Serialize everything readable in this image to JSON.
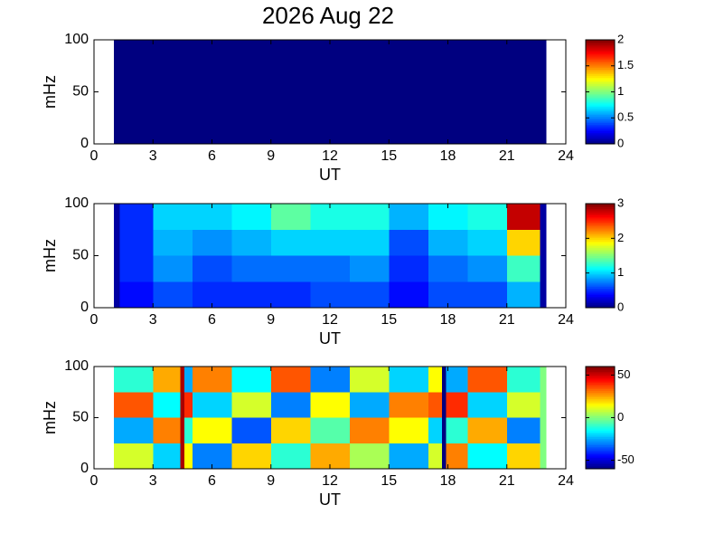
{
  "title": "2026 Aug 22",
  "chart_data": [
    {
      "type": "heatmap",
      "colormap": "jet",
      "xlabel": "UT",
      "ylabel": "mHz",
      "xlim": [
        0,
        24
      ],
      "xticks": [
        0,
        3,
        6,
        9,
        12,
        15,
        18,
        21,
        24
      ],
      "ylim": [
        0,
        100
      ],
      "yticks": [
        0,
        50,
        100
      ],
      "clim": [
        0,
        2
      ],
      "cticks": [
        0,
        0.5,
        1,
        1.5,
        2
      ],
      "x_edges": [
        1,
        23
      ],
      "y_edges": [
        0,
        100
      ],
      "values": [
        [
          0
        ]
      ]
    },
    {
      "type": "heatmap",
      "colormap": "jet",
      "xlabel": "UT",
      "ylabel": "mHz",
      "xlim": [
        0,
        24
      ],
      "xticks": [
        0,
        3,
        6,
        9,
        12,
        15,
        18,
        21,
        24
      ],
      "ylim": [
        0,
        100
      ],
      "yticks": [
        0,
        50,
        100
      ],
      "clim": [
        0,
        3
      ],
      "cticks": [
        0,
        1,
        2,
        3
      ],
      "x_edges": [
        1,
        1.3,
        3,
        5,
        7,
        9,
        11,
        13,
        15,
        17,
        19,
        21,
        22.7,
        23
      ],
      "y_edges": [
        0,
        25,
        50,
        75,
        100
      ],
      "values": [
        [
          0.1,
          0.4,
          0.6,
          0.5,
          0.5,
          0.5,
          0.6,
          0.6,
          0.4,
          0.6,
          0.6,
          0.9,
          0.1
        ],
        [
          0.1,
          0.5,
          0.8,
          0.6,
          0.7,
          0.7,
          0.7,
          0.8,
          0.5,
          0.7,
          0.8,
          1.3,
          0.1
        ],
        [
          0.1,
          0.5,
          0.9,
          0.8,
          0.9,
          1.0,
          1.0,
          1.0,
          0.6,
          0.9,
          1.0,
          2.0,
          0.1
        ],
        [
          0.1,
          0.5,
          1.0,
          1.0,
          1.1,
          1.4,
          1.2,
          1.2,
          0.9,
          1.1,
          1.2,
          2.8,
          0.1
        ]
      ]
    },
    {
      "type": "heatmap",
      "colormap": "jet",
      "xlabel": "UT",
      "ylabel": "mHz",
      "xlim": [
        0,
        24
      ],
      "xticks": [
        0,
        3,
        6,
        9,
        12,
        15,
        18,
        21,
        24
      ],
      "ylim": [
        0,
        100
      ],
      "yticks": [
        0,
        50,
        100
      ],
      "clim": [
        -60,
        60
      ],
      "cticks": [
        -50,
        0,
        50
      ],
      "x_edges": [
        1,
        3,
        4.4,
        4.6,
        5,
        7,
        9,
        11,
        13,
        15,
        17,
        17.7,
        17.9,
        19,
        21,
        22.7,
        23
      ],
      "y_edges": [
        0,
        25,
        50,
        75,
        100
      ],
      "values": [
        [
          10,
          -20,
          55,
          15,
          -30,
          20,
          -10,
          25,
          5,
          -25,
          10,
          -60,
          30,
          -15,
          20,
          0
        ],
        [
          -25,
          30,
          55,
          -10,
          15,
          -35,
          20,
          -5,
          30,
          15,
          -20,
          -60,
          -10,
          25,
          -30,
          0
        ],
        [
          35,
          -15,
          55,
          40,
          -20,
          10,
          -30,
          15,
          -25,
          30,
          35,
          -60,
          40,
          -20,
          10,
          0
        ],
        [
          -10,
          25,
          55,
          -25,
          30,
          -15,
          35,
          -30,
          10,
          -20,
          15,
          -60,
          -25,
          35,
          -10,
          0
        ]
      ]
    }
  ]
}
